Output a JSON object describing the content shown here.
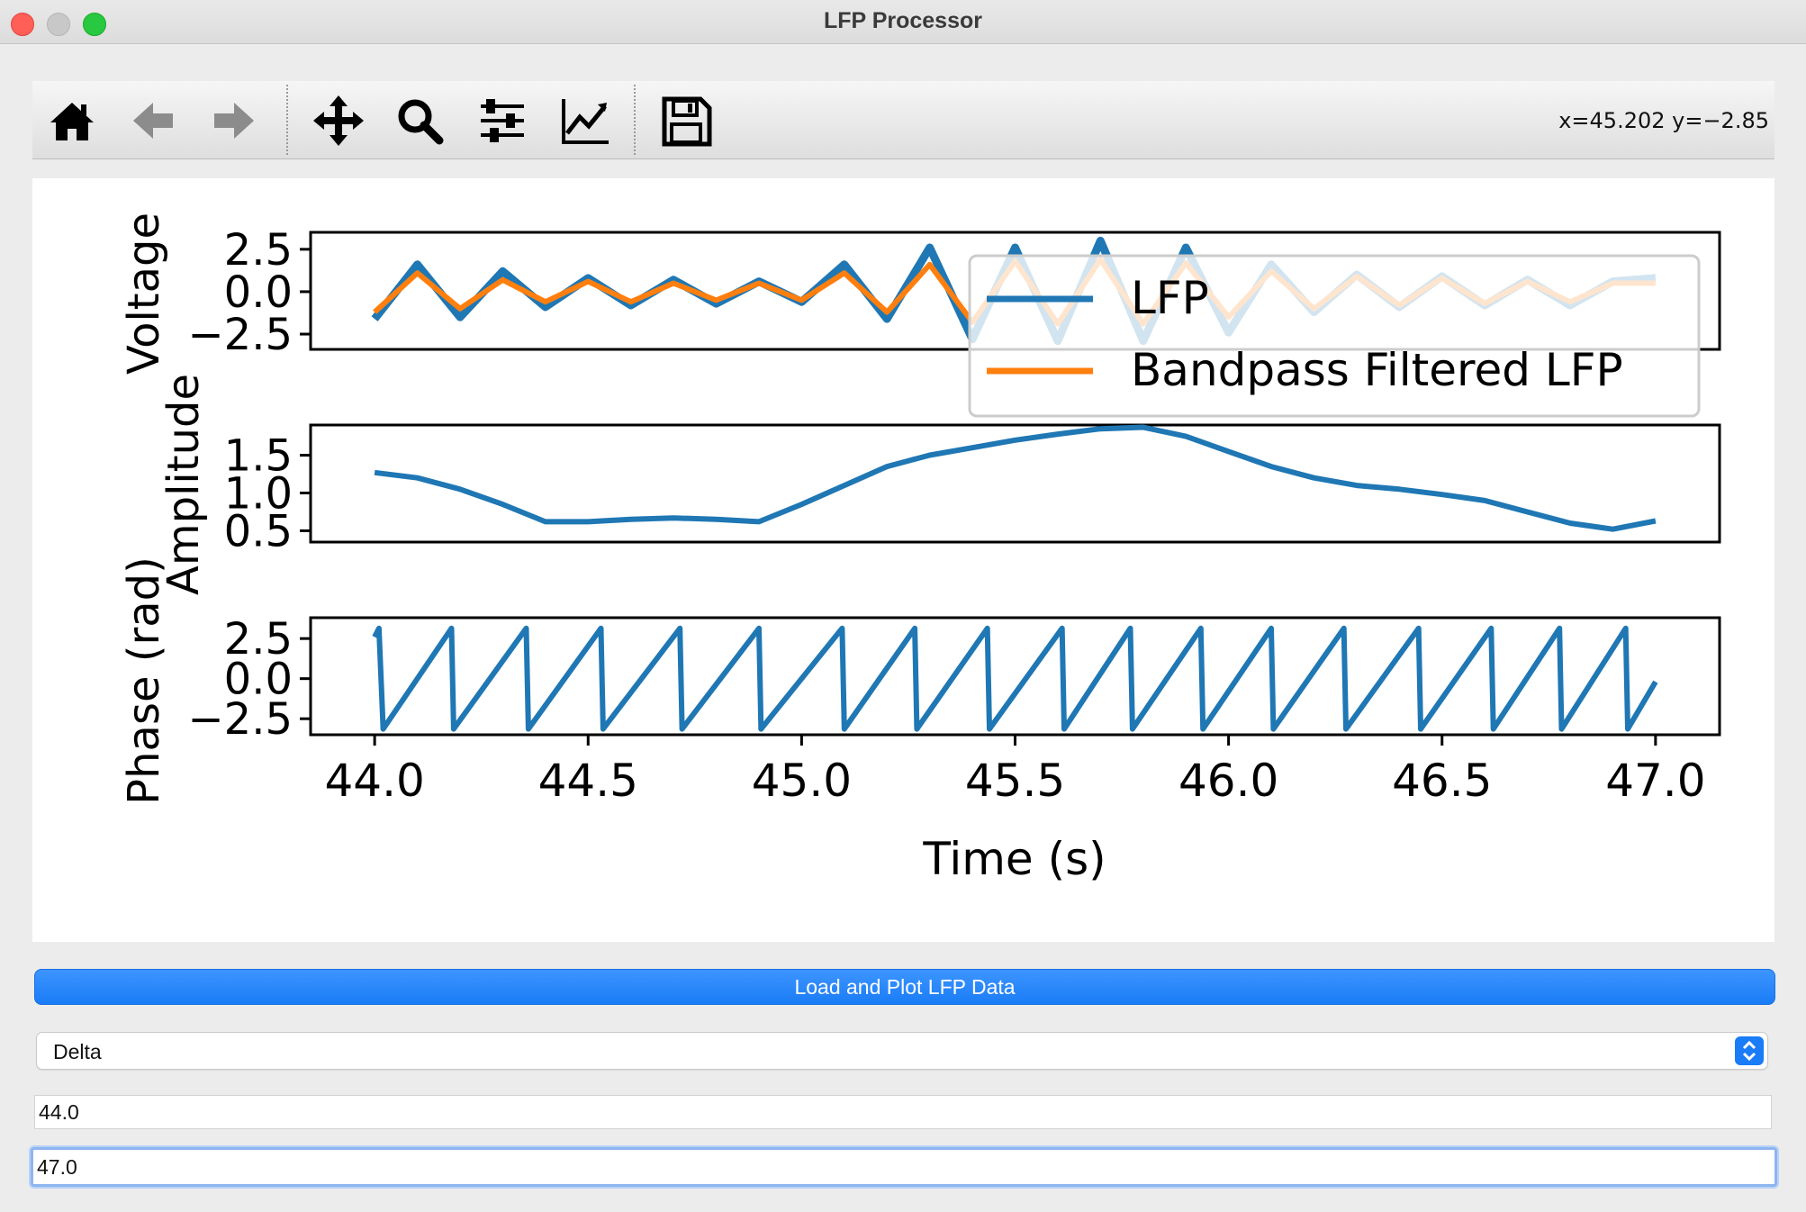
{
  "window": {
    "title": "LFP Processor"
  },
  "toolbar": {
    "buttons": [
      {
        "icon": "home-icon"
      },
      {
        "icon": "back-arrow-icon"
      },
      {
        "icon": "forward-arrow-icon"
      },
      {
        "icon": "pan-icon"
      },
      {
        "icon": "zoom-icon"
      },
      {
        "icon": "configure-subplots-icon"
      },
      {
        "icon": "edit-axes-icon"
      },
      {
        "icon": "save-icon"
      }
    ],
    "coords_text": "x=45.202 y=−2.85"
  },
  "chart_data": [
    {
      "type": "line",
      "ylabel": "Voltage",
      "ylim": [
        -3.4,
        3.5
      ],
      "yticks": [
        "2.5",
        "0.0",
        "−2.5"
      ],
      "series": [
        {
          "name": "LFP",
          "color": "#1f77b4",
          "x": [
            44.0,
            44.1,
            44.2,
            44.3,
            44.4,
            44.5,
            44.6,
            44.7,
            44.8,
            44.9,
            45.0,
            45.1,
            45.2,
            45.3,
            45.4,
            45.5,
            45.6,
            45.7,
            45.8,
            45.9,
            46.0,
            46.1,
            46.2,
            46.3,
            46.4,
            46.5,
            46.6,
            46.7,
            46.8,
            46.9,
            47.0
          ],
          "y": [
            -1.6,
            1.6,
            -1.5,
            1.2,
            -0.9,
            0.8,
            -0.8,
            0.7,
            -0.7,
            0.6,
            -0.6,
            1.6,
            -1.6,
            2.6,
            -2.8,
            2.6,
            -2.9,
            3.0,
            -2.9,
            2.6,
            -2.4,
            1.6,
            -1.2,
            1.0,
            -0.9,
            0.9,
            -0.8,
            0.7,
            -0.8,
            0.6,
            0.8
          ]
        },
        {
          "name": "Bandpass Filtered LFP",
          "color": "#ff7f0e",
          "x": [
            44.0,
            44.1,
            44.2,
            44.3,
            44.4,
            44.5,
            44.6,
            44.7,
            44.8,
            44.9,
            45.0,
            45.1,
            45.2,
            45.3,
            45.4,
            45.5,
            45.6,
            45.7,
            45.8,
            45.9,
            46.0,
            46.1,
            46.2,
            46.3,
            46.4,
            46.5,
            46.6,
            46.7,
            46.8,
            46.9,
            47.0
          ],
          "y": [
            -1.2,
            1.1,
            -1.0,
            0.7,
            -0.6,
            0.6,
            -0.6,
            0.5,
            -0.5,
            0.5,
            -0.5,
            1.1,
            -1.2,
            1.6,
            -1.8,
            1.8,
            -1.9,
            1.9,
            -1.9,
            1.7,
            -1.5,
            1.2,
            -1.0,
            0.9,
            -0.8,
            0.8,
            -0.7,
            0.6,
            -0.6,
            0.5,
            0.5
          ]
        }
      ],
      "legend": {
        "placement": "upper-right",
        "entries": [
          "LFP",
          "Bandpass Filtered LFP"
        ]
      }
    },
    {
      "type": "line",
      "ylabel": "Amplitude",
      "ylim": [
        0.35,
        1.9
      ],
      "yticks": [
        "1.5",
        "1.0",
        "0.5"
      ],
      "series": [
        {
          "color": "#1f77b4",
          "x": [
            44.0,
            44.1,
            44.2,
            44.3,
            44.4,
            44.5,
            44.6,
            44.7,
            44.8,
            44.9,
            45.0,
            45.1,
            45.2,
            45.3,
            45.4,
            45.5,
            45.6,
            45.7,
            45.8,
            45.9,
            46.0,
            46.1,
            46.2,
            46.3,
            46.4,
            46.5,
            46.6,
            46.7,
            46.8,
            46.9,
            47.0
          ],
          "y": [
            1.27,
            1.2,
            1.05,
            0.85,
            0.62,
            0.62,
            0.65,
            0.67,
            0.65,
            0.62,
            0.85,
            1.1,
            1.35,
            1.5,
            1.6,
            1.7,
            1.78,
            1.85,
            1.87,
            1.75,
            1.55,
            1.35,
            1.2,
            1.1,
            1.05,
            0.98,
            0.9,
            0.75,
            0.6,
            0.52,
            0.63
          ]
        }
      ]
    },
    {
      "type": "line",
      "ylabel": "Phase (rad)",
      "xlabel": "Time (s)",
      "ylim": [
        -3.5,
        3.8
      ],
      "yticks": [
        "2.5",
        "0.0",
        "−2.5"
      ],
      "xticks": [
        "44.0",
        "44.5",
        "45.0",
        "45.5",
        "46.0",
        "46.5",
        "47.0"
      ],
      "xlim": [
        43.85,
        47.15
      ],
      "series": [
        {
          "color": "#1f77b4",
          "x": [
            44.0,
            44.01,
            44.02,
            44.18,
            44.185,
            44.355,
            44.36,
            44.53,
            44.535,
            44.715,
            44.72,
            44.9,
            44.905,
            45.095,
            45.1,
            45.265,
            45.27,
            45.435,
            45.44,
            45.61,
            45.615,
            45.77,
            45.775,
            45.935,
            45.94,
            46.1,
            46.105,
            46.27,
            46.275,
            46.445,
            46.45,
            46.615,
            46.62,
            46.775,
            46.78,
            46.93,
            46.935,
            47.0
          ],
          "y": [
            2.6,
            3.14,
            -3.14,
            3.14,
            -3.14,
            3.14,
            -3.14,
            3.14,
            -3.14,
            3.14,
            -3.14,
            3.14,
            -3.14,
            3.14,
            -3.14,
            3.14,
            -3.14,
            3.14,
            -3.14,
            3.14,
            -3.14,
            3.14,
            -3.14,
            3.14,
            -3.14,
            3.14,
            -3.14,
            3.14,
            -3.14,
            3.14,
            -3.14,
            3.14,
            -3.14,
            3.14,
            -3.14,
            3.14,
            -3.14,
            -0.2
          ]
        }
      ]
    }
  ],
  "controls": {
    "load_button_label": "Load and Plot LFP Data",
    "band_select": {
      "selected": "Delta"
    },
    "start_time": "44.0",
    "end_time": "47.0",
    "accent_color": "#1a7cf6"
  }
}
